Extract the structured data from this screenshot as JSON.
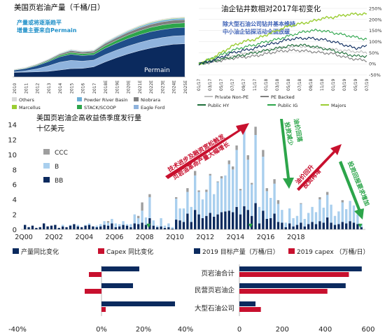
{
  "colors": {
    "navy": "#0b2a5e",
    "lightblue": "#a9cfee",
    "gray": "#9e9e9e",
    "red": "#c8102e",
    "green": "#2ca54a",
    "lime": "#9acd32",
    "darkgreen": "#1f6f3a",
    "tan": "#b7a97d",
    "note_teal": "#1e8fc8",
    "note_blue": "#3b5fb5"
  },
  "chart_data": [
    {
      "type": "area",
      "title": "美国页岩油产量（千桶/日）",
      "annotation": [
        "产量或将逐渐趋平",
        "增量主要来自Permain"
      ],
      "inner_label": "Permain",
      "x": [
        "2010",
        "2011",
        "2012",
        "2013",
        "2014",
        "2015",
        "2016",
        "2017",
        "2018E",
        "2019E",
        "2020E",
        "2021E",
        "2022E",
        "2023E",
        "2024E",
        "2025E"
      ],
      "series": [
        {
          "name": "Permain",
          "values": [
            850,
            900,
            950,
            1050,
            1300,
            1550,
            1600,
            1900,
            2800,
            3600,
            4300,
            4900,
            5400,
            5800,
            6100,
            6200
          ]
        },
        {
          "name": "Eagle Ford",
          "values": [
            100,
            250,
            550,
            1000,
            1450,
            1550,
            1350,
            1250,
            1350,
            1400,
            1450,
            1500,
            1550,
            1550,
            1550,
            1550
          ]
        },
        {
          "name": "Bakken",
          "values": [
            300,
            400,
            600,
            800,
            1000,
            1150,
            1050,
            1000,
            1200,
            1300,
            1400,
            1450,
            1500,
            1500,
            1500,
            1500
          ]
        },
        {
          "name": "STACK/SCOOP",
          "values": [
            60,
            80,
            120,
            180,
            260,
            330,
            330,
            350,
            450,
            550,
            650,
            750,
            800,
            850,
            850,
            850
          ]
        },
        {
          "name": "Niobrara",
          "values": [
            80,
            100,
            130,
            180,
            260,
            340,
            330,
            330,
            430,
            480,
            520,
            560,
            580,
            600,
            600,
            600
          ]
        },
        {
          "name": "Powder River Basin",
          "values": [
            40,
            50,
            60,
            80,
            100,
            120,
            110,
            110,
            150,
            180,
            210,
            240,
            260,
            270,
            280,
            280
          ]
        },
        {
          "name": "Marcellus",
          "values": [
            10,
            15,
            20,
            30,
            40,
            50,
            50,
            50,
            60,
            70,
            80,
            90,
            100,
            100,
            100,
            100
          ]
        },
        {
          "name": "Others",
          "values": [
            50,
            60,
            70,
            80,
            90,
            100,
            100,
            100,
            120,
            130,
            140,
            150,
            150,
            150,
            150,
            150
          ]
        }
      ],
      "legend": [
        "Others",
        "Powder River Basin",
        "Niobrara",
        "Marcellus",
        "STACK/SCOOP",
        "Eagle Ford"
      ],
      "xlabel": "",
      "ylabel": ""
    },
    {
      "type": "line",
      "title": "油企钻井数相对2017年初变化",
      "annotation": [
        "除大型石油公司钻井基本维持",
        "中小油企钻探活动全面放缓"
      ],
      "x_ticks": [
        "01/17",
        "03/17",
        "05/17",
        "07/17",
        "09/17",
        "11/17",
        "01/18",
        "03/18",
        "05/18",
        "07/18",
        "09/18",
        "11/18",
        "01/19",
        "03/19",
        "05/19",
        "07/19"
      ],
      "ylim": [
        -50,
        250
      ],
      "y_ticks": [
        "-50%",
        "0%",
        "50%",
        "100%",
        "150%",
        "200%",
        "250%"
      ],
      "series": [
        {
          "name": "Private Non-PE",
          "color": "#bfbfbf",
          "values": [
            0,
            10,
            25,
            35,
            45,
            55,
            60,
            70,
            75,
            80,
            75,
            70,
            65,
            60,
            55,
            50
          ]
        },
        {
          "name": "PE Backed",
          "color": "#7f7f7f",
          "values": [
            0,
            5,
            15,
            25,
            30,
            35,
            45,
            55,
            60,
            60,
            55,
            50,
            45,
            30,
            20,
            15
          ]
        },
        {
          "name": "Public HY",
          "color": "#1f6f3a",
          "values": [
            0,
            10,
            20,
            30,
            40,
            50,
            60,
            70,
            80,
            85,
            80,
            70,
            60,
            45,
            35,
            35
          ]
        },
        {
          "name": "Public IG",
          "color": "#2ca54a",
          "values": [
            0,
            20,
            40,
            60,
            75,
            85,
            100,
            110,
            125,
            140,
            150,
            150,
            140,
            130,
            120,
            110
          ]
        },
        {
          "name": "Majors",
          "color": "#9acd32",
          "values": [
            0,
            20,
            50,
            80,
            100,
            110,
            130,
            150,
            170,
            180,
            190,
            205,
            210,
            220,
            225,
            225
          ]
        },
        {
          "name": "",
          "color": "#0b2a5e",
          "values": [
            0,
            10,
            30,
            50,
            60,
            70,
            85,
            95,
            110,
            115,
            115,
            110,
            100,
            85,
            70,
            80
          ]
        }
      ]
    },
    {
      "type": "bar",
      "stacked": true,
      "title": "美国页岩油企高收益债季度发行量",
      "subtitle": "十亿美元",
      "ylim": [
        0,
        14
      ],
      "y_ticks": [
        "0",
        "2",
        "4",
        "6",
        "8",
        "10",
        "12",
        "14"
      ],
      "x_ticks": [
        "2Q00",
        "2Q02",
        "2Q04",
        "2Q06",
        "2Q08",
        "2Q10",
        "2Q12",
        "2Q14",
        "2Q16",
        "2Q18"
      ],
      "annotations": [
        "技术进步及融资宽松触发",
        "页岩油革命产量大幅增长",
        "油价回落",
        "投资减少",
        "油价回升",
        "投资再增",
        "投资回报要求增加"
      ],
      "series": [
        {
          "name": "BB",
          "color": "#0b2a5e",
          "values": [
            0.6,
            0.3,
            0.5,
            0.2,
            0.3,
            0.8,
            0.4,
            0.5,
            0.6,
            0.2,
            0.4,
            0.3,
            0.5,
            0.7,
            0.4,
            0.3,
            0.5,
            0.6,
            0.4,
            0.3,
            0.4,
            0.6,
            0.5,
            0.8,
            0.3,
            0.4,
            0.6,
            0.5,
            0.3,
            0.8,
            0.7,
            0.9,
            0.6,
            1.5,
            0.5,
            0.3,
            0.4,
            0.2,
            0.3,
            0.1,
            1.3,
            1.2,
            1.0,
            2.1,
            1.0,
            2.6,
            2.0,
            1.5,
            1.8,
            2.2,
            1.7,
            2.0,
            2.3,
            2.4,
            2.5,
            2.3,
            3.0,
            2.0,
            3.1,
            2.6,
            1.8,
            3.5,
            0.8,
            2.5,
            1.4,
            1.5,
            2.1,
            1.0,
            0.9,
            0.3,
            0.8,
            0.4,
            0.6,
            0.9,
            0.4,
            0.7,
            1.0,
            0.7,
            1.1,
            0.9,
            1.6,
            0.9,
            0.6,
            0.7,
            1.0,
            0.8,
            1.1,
            0.9,
            0.7,
            0.3
          ]
        },
        {
          "name": "B",
          "color": "#a9cfee",
          "values": [
            0.0,
            0.0,
            0.0,
            0.0,
            0.0,
            0.0,
            0.0,
            0.0,
            0.0,
            0.0,
            0.2,
            0.0,
            0.1,
            0.0,
            0.2,
            0.0,
            0.1,
            0.2,
            0.0,
            0.2,
            0.3,
            0.5,
            0.4,
            0.6,
            0.5,
            0.3,
            0.5,
            0.2,
            0.4,
            1.2,
            0.8,
            1.6,
            1.0,
            2.8,
            0.7,
            0.2,
            1.1,
            0.3,
            0.5,
            0.2,
            2.8,
            1.6,
            1.8,
            2.9,
            2.0,
            4.6,
            3.0,
            2.5,
            3.2,
            5.0,
            3.0,
            4.3,
            4.5,
            4.8,
            6.2,
            5.7,
            7.6,
            3.2,
            10.0,
            6.7,
            4.2,
            9.1,
            2.2,
            7.2,
            3.7,
            2.7,
            4.0,
            2.4,
            1.7,
            0.6,
            2.0,
            1.1,
            1.2,
            2.5,
            1.0,
            1.5,
            2.0,
            1.6,
            2.9,
            2.0,
            3.0,
            2.4,
            1.2,
            1.7,
            2.6,
            1.9,
            2.7,
            2.3,
            1.3,
            0.4
          ]
        },
        {
          "name": "CCC",
          "color": "#9e9e9e",
          "values": [
            0.0,
            0.0,
            0.0,
            0.0,
            0.0,
            0.0,
            0.0,
            0.0,
            0.0,
            0.0,
            0.0,
            0.0,
            0.0,
            0.0,
            0.0,
            0.0,
            0.0,
            0.0,
            0.0,
            0.0,
            0.0,
            0.0,
            0.2,
            0.0,
            0.0,
            0.0,
            0.0,
            0.0,
            0.0,
            0.0,
            0.3,
            1.1,
            0.0,
            0.4,
            0.0,
            0.0,
            0.0,
            0.0,
            0.0,
            0.0,
            0.2,
            0.0,
            0.0,
            0.5,
            0.0,
            0.6,
            0.2,
            0.0,
            0.3,
            0.2,
            0.0,
            0.1,
            0.3,
            0.0,
            0.5,
            0.4,
            0.6,
            0.2,
            0.6,
            0.6,
            0.2,
            1.1,
            0.0,
            0.9,
            0.4,
            0.0,
            0.6,
            0.5,
            0.0,
            0.0,
            0.0,
            0.0,
            0.0,
            0.1,
            0.0,
            0.0,
            0.0,
            0.0,
            0.3,
            0.0,
            0.4,
            0.0,
            0.0,
            0.0,
            0.3,
            0.0,
            0.0,
            0.0,
            0.0,
            0.0
          ]
        }
      ],
      "legend": [
        "CCC",
        "B",
        "BB"
      ],
      "markers": [
        {
          "index": 33,
          "label": "▼"
        },
        {
          "index": 60,
          "label": "▼"
        },
        {
          "index": 89,
          "label": "▼"
        }
      ]
    },
    {
      "type": "bar",
      "orientation": "horizontal",
      "categories": [
        "页岩油合计",
        "民营页岩油企",
        "大型石油公司"
      ],
      "series": [
        {
          "name": "产量同比变化",
          "color": "#0b2a5e",
          "values": [
            18,
            15,
            35
          ]
        },
        {
          "name": "Capex 同比变化",
          "color": "#c8102e",
          "values": [
            -6,
            -8,
            2
          ]
        }
      ],
      "xlim": [
        -40,
        40
      ],
      "x_ticks": [
        "-40%",
        "0%",
        "20%",
        "40%"
      ]
    },
    {
      "type": "bar",
      "orientation": "horizontal",
      "categories": [
        "页岩油合计",
        "民营页岩油企",
        "大型石油公司"
      ],
      "series": [
        {
          "name": "2019 目标产量（万桶/日）",
          "color": "#0b2a5e",
          "values": [
            570,
            495,
            75
          ]
        },
        {
          "name": "2019 capex （万桶/日）",
          "color": "#c8102e",
          "values": [
            510,
            410,
            100
          ]
        }
      ],
      "xlim": [
        0,
        600
      ],
      "x_ticks": [
        "0",
        "200",
        "400",
        "600"
      ]
    }
  ]
}
